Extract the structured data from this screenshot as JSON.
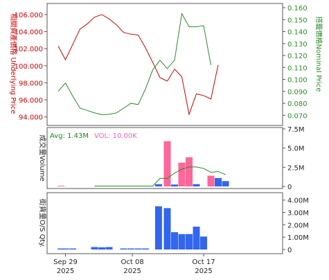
{
  "colors": {
    "price": "#cc0000",
    "nominal": "#2a8a2a",
    "volume_up": "#ff6699",
    "volume_down": "#3366ee",
    "avg_line": "#1a8a1a",
    "avg_text": "#1a8a1a",
    "vol_text": "#ee66bb",
    "os_bar": "#3366ee",
    "frame": "#555555",
    "grid": "#cccccc"
  },
  "chart_data": [
    {
      "type": "line",
      "name": "price-panel",
      "ylabel_left": "相關資產價格 Underlying Price",
      "ylabel_right": "搭籠價格Nominal Price",
      "left_ticks": [
        "106.000",
        "104.000",
        "102.000",
        "100.000",
        "98.000",
        "96.000",
        "94.000"
      ],
      "right_ticks": [
        "0.160",
        "0.150",
        "0.140",
        "0.130",
        "0.120",
        "0.110",
        "0.100",
        "0.090",
        "0.080",
        "0.070"
      ],
      "ylim_left": [
        93.0,
        107.3
      ],
      "ylim_right": [
        0.0615,
        0.1635
      ],
      "series": [
        {
          "axis": "left",
          "values": [
            [
              0,
              102.3
            ],
            [
              1,
              100.7
            ],
            [
              2,
              102.5
            ],
            [
              3,
              104.3
            ],
            [
              4,
              104.9
            ],
            [
              5,
              105.7
            ],
            [
              6,
              106.0
            ],
            [
              7,
              105.5
            ],
            [
              8,
              104.8
            ],
            [
              9,
              103.9
            ],
            [
              10,
              103.7
            ],
            [
              11,
              103.6
            ],
            [
              12,
              102.1
            ],
            [
              13,
              100.4
            ],
            [
              14,
              98.6
            ],
            [
              15,
              98.2
            ],
            [
              16,
              99.6
            ],
            [
              17,
              98.7
            ],
            [
              18,
              94.3
            ],
            [
              19,
              96.7
            ],
            [
              20,
              96.5
            ],
            [
              21,
              96.1
            ],
            [
              22,
              100.1
            ]
          ]
        },
        {
          "axis": "right",
          "values": [
            [
              0,
              0.09
            ],
            [
              1,
              0.097
            ],
            [
              2,
              0.086
            ],
            [
              3,
              0.076
            ],
            [
              4,
              0.074
            ],
            [
              5,
              0.072
            ],
            [
              6,
              0.0705
            ],
            [
              7,
              0.0708
            ],
            [
              8,
              0.072
            ],
            [
              9,
              0.076
            ],
            [
              10,
              0.08
            ],
            [
              11,
              0.079
            ],
            [
              12,
              0.092
            ],
            [
              13,
              0.108
            ],
            [
              14,
              0.116
            ],
            [
              15,
              0.109
            ],
            [
              16,
              0.116
            ],
            [
              17,
              0.155
            ],
            [
              18,
              0.144
            ],
            [
              19,
              0.144
            ],
            [
              20,
              0.145
            ],
            [
              21,
              0.112
            ]
          ]
        }
      ]
    },
    {
      "type": "bar",
      "name": "volume-panel",
      "ylabel": "成交量Volume",
      "legend_avg": "Avg: 1.43M",
      "legend_vol": "VOL: 10.00K",
      "ticks": [
        "7.5M",
        "5.0M",
        "2.5M",
        "0"
      ],
      "ylim": [
        0,
        7.5
      ],
      "bars": [
        [
          0.4,
          0.05,
          "up"
        ],
        [
          13.8,
          0.3,
          "down"
        ],
        [
          15.0,
          5.9,
          "up"
        ],
        [
          16.0,
          0.25,
          "down"
        ],
        [
          17.0,
          3.1,
          "up"
        ],
        [
          18.0,
          3.8,
          "up"
        ],
        [
          19.0,
          0.3,
          "down"
        ],
        [
          20.0,
          0.0,
          "none"
        ],
        [
          21.0,
          1.4,
          "up"
        ],
        [
          22.0,
          1.1,
          "down"
        ],
        [
          23.0,
          0.7,
          "down"
        ]
      ],
      "avg_line": [
        [
          5.0,
          0.0
        ],
        [
          13.0,
          0.0
        ],
        [
          14.0,
          1.0
        ],
        [
          15.0,
          1.0
        ],
        [
          16.0,
          1.7
        ],
        [
          17.0,
          2.2
        ],
        [
          18.0,
          2.5
        ],
        [
          19.0,
          2.5
        ],
        [
          20.0,
          2.3
        ],
        [
          21.0,
          1.8
        ],
        [
          22.0,
          1.9
        ],
        [
          23.0,
          1.5
        ]
      ]
    },
    {
      "type": "bar",
      "name": "os-panel",
      "ylabel": "街貨量O/S Qty.",
      "ticks": [
        "4.00M",
        "3.00M",
        "2.00M",
        "1.00M",
        "0"
      ],
      "ylim": [
        0,
        4.6
      ],
      "bars": [
        [
          0.4,
          0.03
        ],
        [
          1.0,
          0.04
        ],
        [
          2.0,
          0.04
        ],
        [
          5.0,
          0.2
        ],
        [
          6.0,
          0.18
        ],
        [
          7.0,
          0.2
        ],
        [
          9.0,
          0.03
        ],
        [
          10.0,
          0.08
        ],
        [
          11.0,
          0.03
        ],
        [
          12.0,
          0.03
        ],
        [
          13.8,
          3.5
        ],
        [
          15.0,
          3.35
        ],
        [
          16.0,
          1.4
        ],
        [
          17.0,
          1.25
        ],
        [
          18.0,
          1.25
        ],
        [
          19.0,
          1.85
        ],
        [
          20.0,
          1.05
        ]
      ]
    }
  ],
  "x_axis": {
    "labels": [
      {
        "date": "Sep 29",
        "year": "2025",
        "index": 1.0
      },
      {
        "date": "Oct 08",
        "year": "2025",
        "index": 10.2
      },
      {
        "date": "Oct 17",
        "year": "2025",
        "index": 20.0
      }
    ]
  }
}
